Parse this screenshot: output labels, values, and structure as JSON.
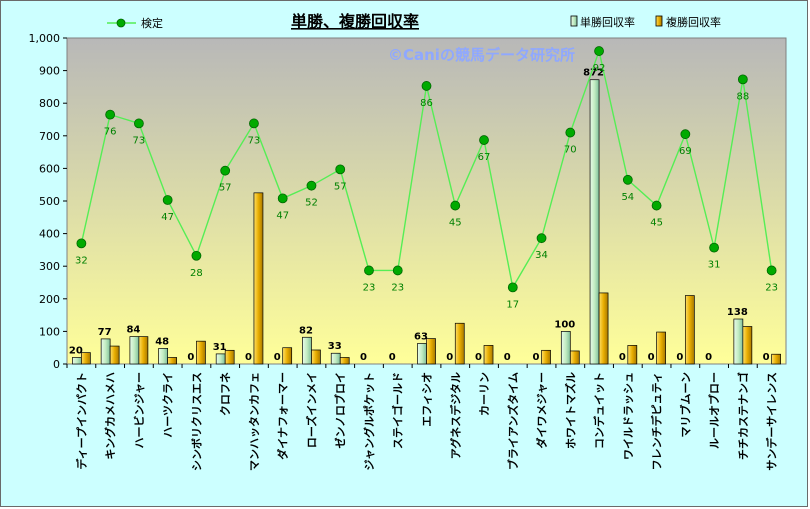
{
  "chart_data": {
    "type": "bar",
    "title": "単勝、複勝回収率",
    "watermark": "©Caniの競馬データ研究所",
    "ylim": [
      0,
      1000
    ],
    "yticks": [
      "0",
      "100",
      "200",
      "300",
      "400",
      "500",
      "600",
      "700",
      "800",
      "900",
      "1,000"
    ],
    "grid": false,
    "legend": [
      {
        "name": "単勝回収率",
        "color": "#c8f0c8"
      },
      {
        "name": "複勝回収率",
        "color": "#e0a800"
      }
    ],
    "line_legend": "検定",
    "categories": [
      "ディープインパクト",
      "キングカメハメハ",
      "ハービンジャー",
      "ハーツクライ",
      "シンボリクリスエス",
      "クロフネ",
      "マンハッタンカフェ",
      "ダイナフォーマー",
      "ローズインメイ",
      "ゼンノロブロイ",
      "ジャングルポケット",
      "ステイゴールド",
      "エフィシオ",
      "アグネスデジタル",
      "カーリン",
      "ブライアンズタイム",
      "ダイワメジャー",
      "ホワイトマズル",
      "コンデュイット",
      "ワイルドラッシュ",
      "フレンチデピュティ",
      "マリブムーン",
      "ルールオブロー",
      "チチカステナンゴ",
      "サンデーサイレンス"
    ],
    "series": [
      {
        "name": "単勝回収率",
        "values": [
          20,
          77,
          84,
          48,
          0,
          31,
          0,
          0,
          82,
          33,
          0,
          0,
          63,
          0,
          0,
          0,
          0,
          100,
          872,
          0,
          0,
          0,
          0,
          138,
          0
        ]
      },
      {
        "name": "複勝回収率",
        "values": [
          35,
          55,
          84,
          20,
          70,
          42,
          525,
          50,
          43,
          20,
          0,
          0,
          78,
          125,
          57,
          0,
          42,
          40,
          218,
          57,
          98,
          210,
          0,
          115,
          30
        ]
      },
      {
        "name": "検定",
        "values": [
          370,
          765,
          738,
          503,
          332,
          593,
          738,
          508,
          547,
          597,
          287,
          287,
          853,
          486,
          687,
          235,
          386,
          710,
          960,
          565,
          486,
          705,
          357,
          873,
          287
        ],
        "labels": [
          "32",
          "76",
          "73",
          "47",
          "28",
          "57",
          "73",
          "47",
          "52",
          "57",
          "23",
          "23",
          "86",
          "45",
          "67",
          "17",
          "34",
          "70",
          "92",
          "54",
          "45",
          "69",
          "31",
          "88",
          "23"
        ]
      }
    ],
    "colors": {
      "plot_top": "#b8b8b8",
      "plot_bottom": "#ffff99",
      "line": "#55ee55",
      "marker": "#00aa00",
      "line_label": "#008000"
    }
  }
}
